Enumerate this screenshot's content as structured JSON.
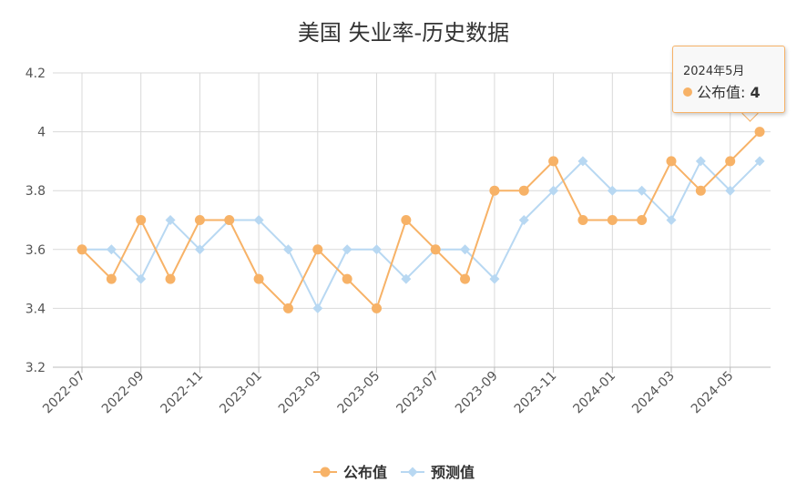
{
  "chart_data": {
    "type": "line",
    "title": "美国 失业率-历史数据",
    "x": [
      "2022-07",
      "2022-08",
      "2022-09",
      "2022-10",
      "2022-11",
      "2022-12",
      "2023-01",
      "2023-02",
      "2023-03",
      "2023-04",
      "2023-05",
      "2023-06",
      "2023-07",
      "2023-08",
      "2023-09",
      "2023-10",
      "2023-11",
      "2023-12",
      "2024-01",
      "2024-02",
      "2024-03",
      "2024-04",
      "2024-05",
      "2024-06"
    ],
    "x_tick_labels": [
      "2022-07",
      "2022-09",
      "2022-11",
      "2023-01",
      "2023-03",
      "2023-05",
      "2023-07",
      "2023-09",
      "2023-11",
      "2024-01",
      "2024-03",
      "2024-05"
    ],
    "y_tick_labels": [
      "3.2",
      "3.4",
      "3.6",
      "3.8",
      "4",
      "4.2"
    ],
    "ylim": [
      3.2,
      4.2
    ],
    "grid": true,
    "legend_position": "bottom",
    "series": [
      {
        "name": "公布值",
        "color": "#f7b267",
        "marker": "circle",
        "values": [
          3.6,
          3.5,
          3.7,
          3.5,
          3.7,
          3.7,
          3.5,
          3.4,
          3.6,
          3.5,
          3.4,
          3.7,
          3.6,
          3.5,
          3.8,
          3.8,
          3.9,
          3.7,
          3.7,
          3.7,
          3.9,
          3.8,
          3.9,
          4.0
        ]
      },
      {
        "name": "预测值",
        "color": "#b8d8f2",
        "marker": "diamond",
        "values": [
          3.6,
          3.6,
          3.5,
          3.7,
          3.6,
          3.7,
          3.7,
          3.6,
          3.4,
          3.6,
          3.6,
          3.5,
          3.6,
          3.6,
          3.5,
          3.7,
          3.8,
          3.9,
          3.8,
          3.8,
          3.7,
          3.9,
          3.8,
          3.9
        ]
      }
    ],
    "tooltip": {
      "date": "2024年5月",
      "series_label": "公布值",
      "separator": ": ",
      "value": "4",
      "color": "#f7b267"
    }
  }
}
